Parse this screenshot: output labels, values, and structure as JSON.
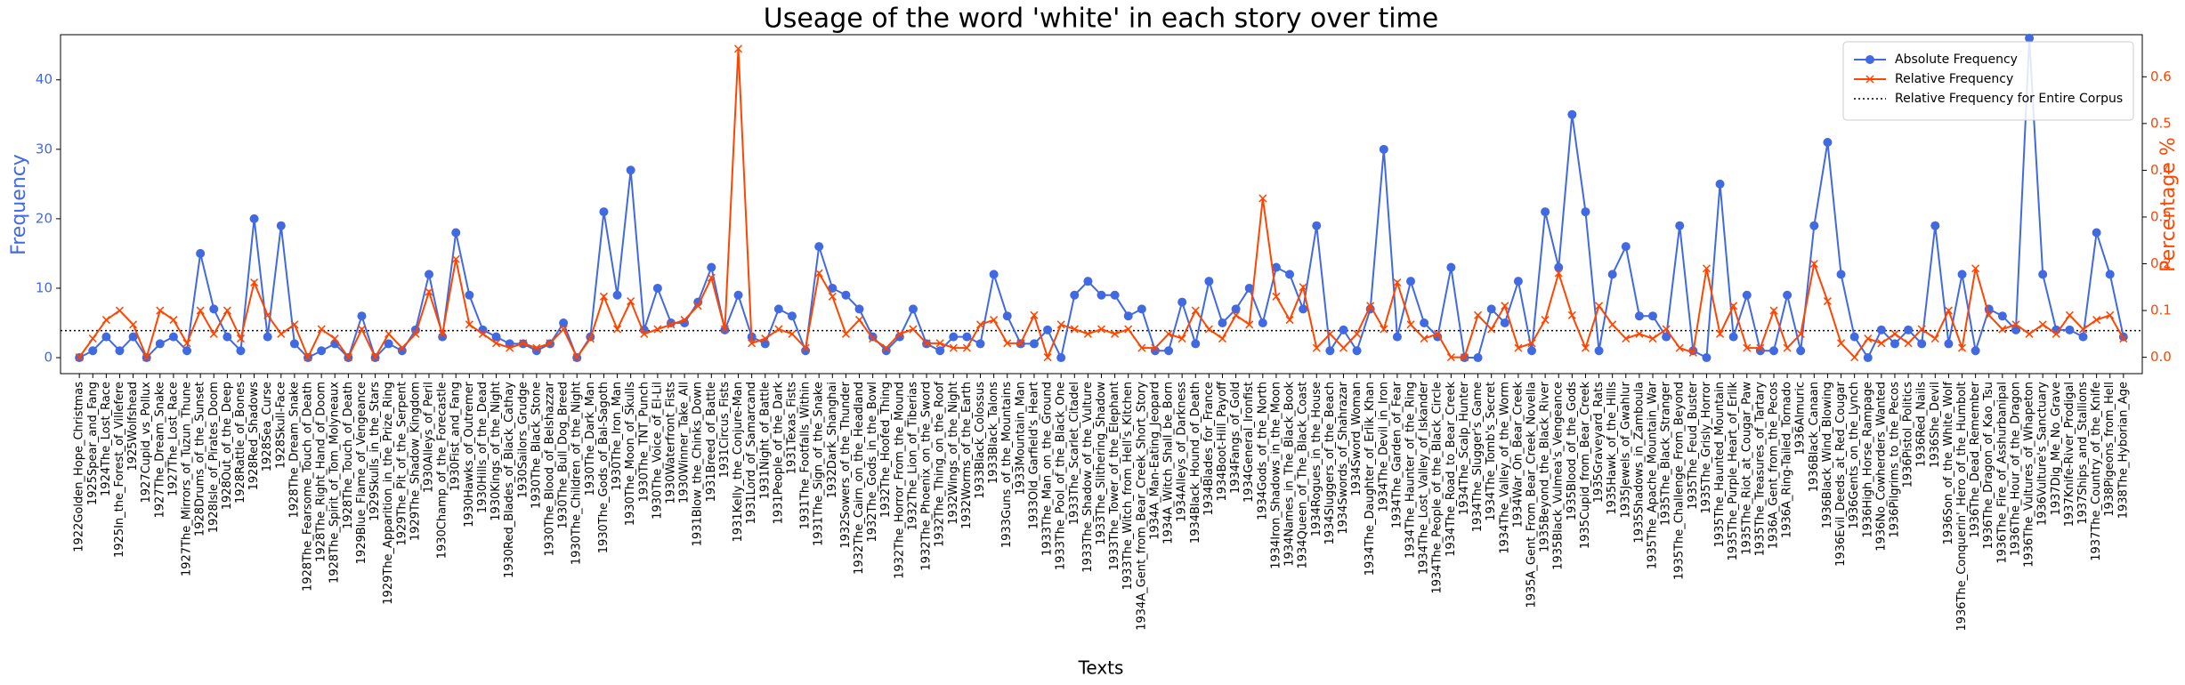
{
  "chart_data": {
    "type": "line",
    "title": "Useage of the word 'white' in each story over time",
    "x_label": "Texts",
    "y_label": "Frequency",
    "y2_label": "Percentage %",
    "legend": "upper right",
    "categories": [
      "1922Golden_Hope_Christmas",
      "1925Spear_and_Fang",
      "1924The_Lost_Race",
      "1925In_the_Forest_of_Villefere",
      "1925Wolfshead",
      "1927Cupid_vs_Pollux",
      "1927The_Dream_Snake",
      "1927The_Lost_Race",
      "1927The_Mirrors_of_Tuzun_Thune",
      "1928Drums_of_the_Sunset",
      "1928Isle_of_Pirates_Doom",
      "1928Out_of_the_Deep",
      "1928Rattle_of_Bones",
      "1928Red_Shadows",
      "1928Sea_Curse",
      "1928Skull-Face",
      "1928The_Dream_Snake",
      "1928The_Fearsome_Touch_of_Death",
      "1928The_Right_Hand_of_Doom",
      "1928The_Spirit_of_Tom_Molyneaux",
      "1928The_Touch_of_Death",
      "1929Blue_Flame_of_Vengeance",
      "1929Skulls_in_the_Stars",
      "1929The_Apparition_in_the_Prize_Ring",
      "1929The_Pit_of_the_Serpent",
      "1929The_Shadow_Kingdom",
      "1930Alleys_of_Peril",
      "1930Champ_of_the_Forecastle",
      "1930Fist_and_Fang",
      "1930Hawks_of_Outremer",
      "1930Hills_of_the_Dead",
      "1930Kings_of_the_Night",
      "1930Red_Blades_of_Black_Cathay",
      "1930Sailors_Grudge",
      "1930The_Black_Stone",
      "1930The_Blood_of_Belshazzar",
      "1930The_Bull_Dog_Breed",
      "1930The_Children_of_the_Night",
      "1930The_Dark_Man",
      "1930The_Gods_of_Bal-Sagoth",
      "1930The_Iron_Man",
      "1930The_Moon_of_Skulls",
      "1930The_TNT_Punch",
      "1930The_Voice_of_El-Lil",
      "1930Waterfront_Fists",
      "1930Winner_Take_All",
      "1931Blow_the_Chinks_Down",
      "1931Breed_of_Battle",
      "1931Circus_Fists",
      "1931Kelly_the_Conjure-Man",
      "1931Lord_of_Samarcand",
      "1931Night_of_Battle",
      "1931People_of_the_Dark",
      "1931Texas_Fists",
      "1931The_Footfalls_Within",
      "1931The_Sign_of_the_Snake",
      "1932Dark_Shanghai",
      "1932Sowers_of_the_Thunder",
      "1932The_Cairn_on_the_Headland",
      "1932The_Gods_in_the_Bowl",
      "1932The_Hoofed_Thing",
      "1932The_Horror_From_the_Mound",
      "1932The_Lion_of_Tiberias",
      "1932The_Phoenix_on_the_Sword",
      "1932The_Thing_on_the_Roof",
      "1932Wings_of_the_Night",
      "1932Worms_of_the_Earth",
      "1933Black_Colossus",
      "1933Black_Talons",
      "1933Guns_of_the_Mountains",
      "1933Mountain_Man",
      "1933Old_Garfield's_Heart",
      "1933The_Man_on_the_Ground",
      "1933The_Pool_of_the_Black_One",
      "1933The_Scarlet_Citadel",
      "1933The_Shadow_of_the_Vulture",
      "1933The_Slithering_Shadow",
      "1933The_Tower_of_the_Elephant",
      "1933The_Witch_from_Hell's_Kitchen",
      "1934A_Gent_from_Bear_Creek_Short_Story",
      "1934A_Man-Eating_Jeopard",
      "1934A_Witch_Shall_be_Born",
      "1934Alleys_of_Darkness",
      "1934Black_Hound_of_Death",
      "1934Blades_for_France",
      "1934Boot-Hill_Payoff",
      "1934Fangs_of_Gold",
      "1934General_Ironfist",
      "1934Gods_of_the_North",
      "1934Iron_Shadows_in_the_Moon",
      "1934Names_in_The_Black_Book",
      "1934Queen_of_The_Black_Coast",
      "1934Rogues_in_the_House",
      "1934Sluggers_of_the_Beach",
      "1934Swords_of_Shahrazar",
      "1934Sword_Woman",
      "1934The_Daughter_of_Erlik_Khan",
      "1934The_Devil_in_Iron",
      "1934The_Garden_of_Fear",
      "1934The_Haunter_of_the_Ring",
      "1934The_Lost_Valley_of_Iskander",
      "1934The_People_of_the_Black_Circle",
      "1934The_Road_to_Bear_Creek",
      "1934The_Scalp_Hunter",
      "1934The_Slugger's_Game",
      "1934The_Tomb's_Secret",
      "1934The_Valley_of_the_Worm",
      "1934War_On_Bear_Creek",
      "1935A_Gent_From_Bear_Creek_Novella",
      "1935Beyond_the_Black_River",
      "1935Black_Vulmea's_Vengeance",
      "1935Blood_of_the_Gods",
      "1935Cupid_from_Bear_Creek",
      "1935Graveyard_Rats",
      "1935Hawk_of_the_Hills",
      "1935Jewels_of_Gwahlur",
      "1935Shadows_in_Zamboula",
      "1935The_Apache_Mountain_War",
      "1935The_Black_Stranger",
      "1935The_Challenge_From_Beyond",
      "1935The_Feud_Buster",
      "1935The_Grisly_Horror",
      "1935The_Haunted_Mountain",
      "1935The_Purple_Heart_of_Erlik",
      "1935The_Riot_at_Cougar_Paw",
      "1935The_Treasures_of_Tartary",
      "1936A_Gent_from_the_Pecos",
      "1936A_Ring-Tailed_Tornado",
      "1936Almuric",
      "1936Black_Canaan",
      "1936Black_Wind_Blowing",
      "1936Evil_Deeds_at_Red_Cougar",
      "1936Gents_on_the_Lynch",
      "1936High_Horse_Rampage",
      "1936No_Cowherders_Wanted",
      "1936Pilgrims_to_the_Pecos",
      "1936Pistol_Politics",
      "1936Red_Nails",
      "1936She_Devil",
      "1936Son_of_the_White_Wolf",
      "1936The_Conquerin'_Hero_of_the_Humbolt",
      "1936The_Dead_Remember",
      "1936The_Dragon_of_Kao_Tsu",
      "1936The_Fire_of_Asshurbanipal",
      "1936The_Hour_of_the_Dragon",
      "1936The_Vultures_of_Whapeton",
      "1936Vulture's_Sanctuary",
      "1937Dig_Me_No_Grave",
      "1937Knife-River_Prodigal",
      "1937Ships_and_Stallions",
      "1937The_Country_of_the_Knife",
      "1938Pigeons_from_Hell",
      "1938The_Hyborian_Age"
    ],
    "series": [
      {
        "name": "Absolute Frequency",
        "color": "#4169e1",
        "marker": "o",
        "axis": "y",
        "values": [
          0,
          1,
          3,
          1,
          3,
          0,
          2,
          3,
          1,
          15,
          7,
          3,
          1,
          20,
          3,
          19,
          2,
          0,
          1,
          2,
          0,
          6,
          0,
          2,
          1,
          4,
          12,
          3,
          18,
          9,
          4,
          3,
          2,
          2,
          1,
          2,
          5,
          0,
          3,
          21,
          9,
          27,
          4,
          10,
          5,
          5,
          8,
          13,
          4,
          9,
          3,
          2,
          7,
          6,
          1,
          16,
          10,
          9,
          7,
          3,
          1,
          3,
          7,
          2,
          1,
          3,
          3,
          2,
          12,
          6,
          2,
          2,
          4,
          0,
          9,
          11,
          9,
          9,
          6,
          7,
          1,
          1,
          8,
          2,
          11,
          5,
          7,
          10,
          5,
          13,
          12,
          7,
          19,
          1,
          4,
          1,
          7,
          30,
          3,
          11,
          5,
          3,
          13,
          0,
          0,
          7,
          5,
          11,
          1,
          21,
          13,
          35,
          21,
          1,
          12,
          16,
          6,
          6,
          3,
          19,
          1,
          0,
          25,
          3,
          9,
          1,
          1,
          9,
          1,
          19,
          31,
          12,
          3,
          0,
          4,
          2,
          4,
          2,
          19,
          2,
          12,
          1,
          7,
          6,
          4,
          46,
          12,
          4,
          4,
          3,
          18,
          12,
          3
        ]
      },
      {
        "name": "Relative Frequency",
        "color": "#ff4500",
        "marker": "x",
        "axis": "y2",
        "values": [
          0.0,
          0.04,
          0.08,
          0.1,
          0.07,
          0.0,
          0.1,
          0.08,
          0.03,
          0.1,
          0.05,
          0.1,
          0.04,
          0.16,
          0.09,
          0.05,
          0.07,
          0.0,
          0.06,
          0.04,
          0.0,
          0.06,
          0.0,
          0.05,
          0.02,
          0.05,
          0.14,
          0.05,
          0.21,
          0.07,
          0.05,
          0.03,
          0.02,
          0.03,
          0.02,
          0.03,
          0.06,
          0.0,
          0.04,
          0.13,
          0.06,
          0.12,
          0.05,
          0.06,
          0.07,
          0.08,
          0.11,
          0.17,
          0.06,
          0.66,
          0.03,
          0.04,
          0.06,
          0.05,
          0.02,
          0.18,
          0.13,
          0.05,
          0.08,
          0.04,
          0.02,
          0.05,
          0.06,
          0.03,
          0.03,
          0.02,
          0.02,
          0.07,
          0.08,
          0.03,
          0.03,
          0.09,
          0.0,
          0.07,
          0.06,
          0.05,
          0.06,
          0.05,
          0.06,
          0.02,
          0.02,
          0.05,
          0.04,
          0.1,
          0.06,
          0.04,
          0.09,
          0.07,
          0.34,
          0.13,
          0.08,
          0.15,
          0.02,
          0.05,
          0.02,
          0.05,
          0.11,
          0.06,
          0.16,
          0.07,
          0.04,
          0.05,
          0.0,
          0.0,
          0.09,
          0.06,
          0.11,
          0.02,
          0.03,
          0.08,
          0.18,
          0.09,
          0.02,
          0.11,
          0.07,
          0.04,
          0.05,
          0.04,
          0.06,
          0.02,
          0.01,
          0.19,
          0.05,
          0.11,
          0.02,
          0.02,
          0.1,
          0.02,
          0.05,
          0.2,
          0.12,
          0.03,
          0.0,
          0.04,
          0.03,
          0.05,
          0.03,
          0.06,
          0.04,
          0.1,
          0.02,
          0.19,
          0.09,
          0.06,
          0.07,
          0.05,
          0.07,
          0.05,
          0.09,
          0.06,
          0.08,
          0.09,
          0.04
        ]
      }
    ],
    "reference_line": {
      "name": "Relative Frequency for Entire Corpus",
      "value": 0.057,
      "axis": "y2",
      "color": "#000000"
    },
    "ylim": [
      -2.3,
      46.5
    ],
    "yticks": [
      0,
      10,
      20,
      30,
      40
    ],
    "y2lim": [
      -0.035,
      0.69
    ],
    "y2ticks": [
      {
        "value": 0,
        "label": "0.0"
      },
      0.1,
      0.2,
      0.3,
      0.4,
      0.5,
      0.6
    ],
    "grid": false
  }
}
